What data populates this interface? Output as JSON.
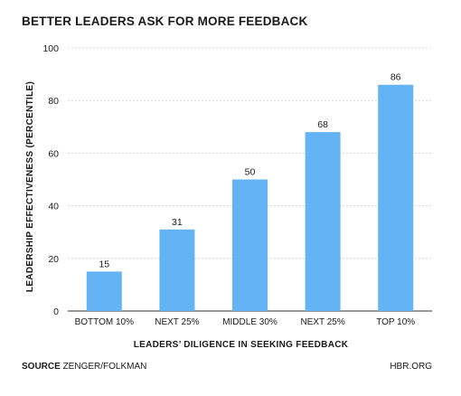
{
  "chart_data": {
    "type": "bar",
    "title": "BETTER LEADERS ASK FOR MORE FEEDBACK",
    "xlabel": "LEADERS’ DILIGENCE IN SEEKING FEEDBACK",
    "ylabel": "LEADERSHIP EFFECTIVENESS (PERCENTILE)",
    "categories": [
      "BOTTOM 10%",
      "NEXT 25%",
      "MIDDLE 30%",
      "NEXT 25%",
      "TOP 10%"
    ],
    "values": [
      15,
      31,
      50,
      68,
      86
    ],
    "ylim": [
      0,
      100
    ],
    "yticks": [
      0,
      20,
      40,
      60,
      80,
      100
    ],
    "grid": true,
    "bar_color": "#63b3f5"
  },
  "footer": {
    "source_label": "SOURCE",
    "source_text": "ZENGER/FOLKMAN",
    "publisher": "HBR.ORG"
  }
}
